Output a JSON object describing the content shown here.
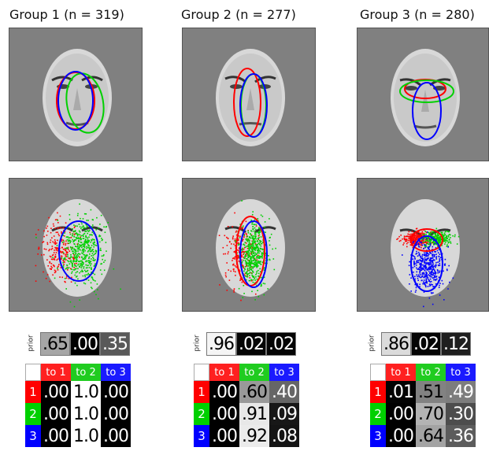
{
  "groups": [
    {
      "title": "Group 1 (n = 319)",
      "prior": [
        ".65",
        ".00",
        ".35"
      ],
      "prior_shades": [
        0.65,
        0.0,
        0.35
      ],
      "matrix": [
        [
          ".00",
          "1.0",
          ".00"
        ],
        [
          ".00",
          "1.0",
          ".00"
        ],
        [
          ".00",
          "1.0",
          ".00"
        ]
      ],
      "matrix_shades": [
        [
          0,
          1,
          0
        ],
        [
          0,
          1,
          0
        ],
        [
          0,
          1,
          0
        ]
      ]
    },
    {
      "title": "Group 2 (n = 277)",
      "prior": [
        ".96",
        ".02",
        ".02"
      ],
      "prior_shades": [
        0.96,
        0.02,
        0.02
      ],
      "matrix": [
        [
          ".00",
          ".60",
          ".40"
        ],
        [
          ".00",
          ".91",
          ".09"
        ],
        [
          ".00",
          ".92",
          ".08"
        ]
      ],
      "matrix_shades": [
        [
          0,
          0.6,
          0.4
        ],
        [
          0,
          0.91,
          0.09
        ],
        [
          0,
          0.92,
          0.08
        ]
      ]
    },
    {
      "title": "Group 3 (n = 280)",
      "prior": [
        ".86",
        ".02",
        ".12"
      ],
      "prior_shades": [
        0.86,
        0.02,
        0.12
      ],
      "matrix": [
        [
          ".01",
          ".51",
          ".49"
        ],
        [
          ".00",
          ".70",
          ".30"
        ],
        [
          ".00",
          ".64",
          ".36"
        ]
      ],
      "matrix_shades": [
        [
          0.01,
          0.51,
          0.49
        ],
        [
          0,
          0.7,
          0.3
        ],
        [
          0,
          0.64,
          0.36
        ]
      ]
    }
  ],
  "prior_label": "prior",
  "col_headers": [
    "to 1",
    "to 2",
    "to 3"
  ],
  "row_headers": [
    "1",
    "2",
    "3"
  ],
  "state_colors": [
    "#ff0000",
    "#00d000",
    "#0000ff"
  ],
  "state_header_colors": [
    "#ff2020",
    "#20cc20",
    "#1a1aff"
  ]
}
